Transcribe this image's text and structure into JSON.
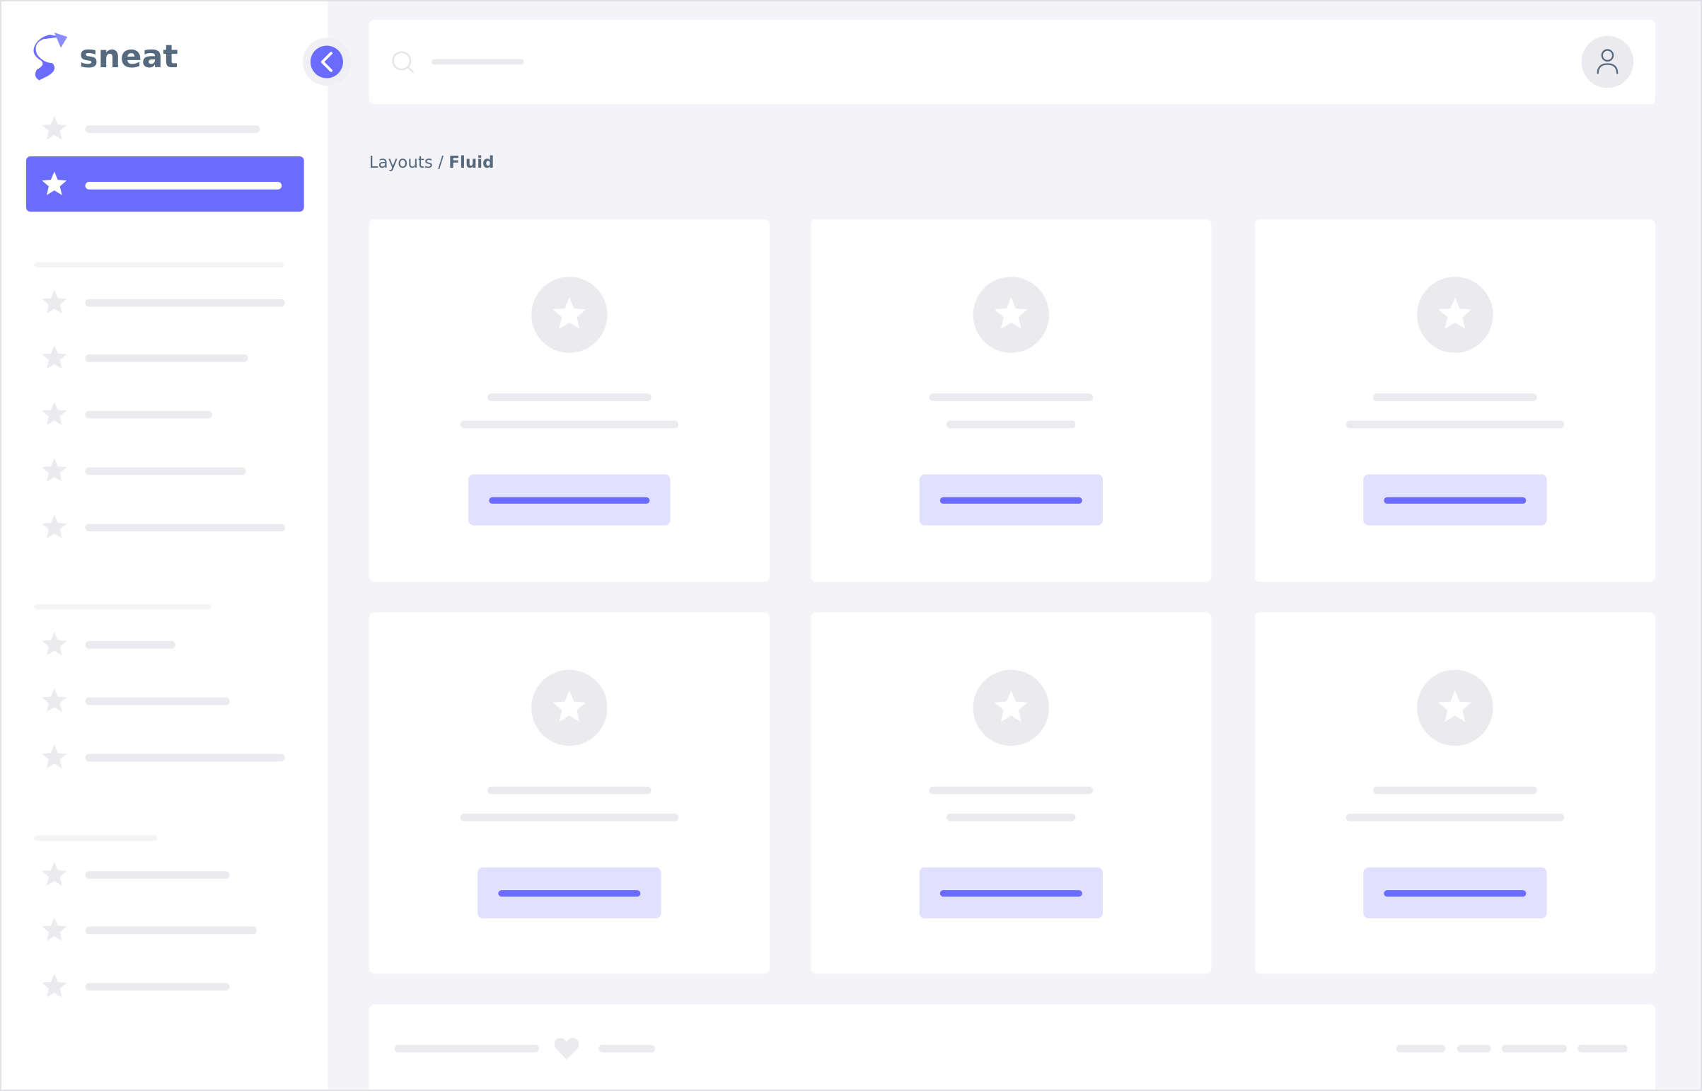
{
  "brand": {
    "name": "sneat"
  },
  "breadcrumb": {
    "parent": "Layouts",
    "separator": "/",
    "current": "Fluid"
  }
}
